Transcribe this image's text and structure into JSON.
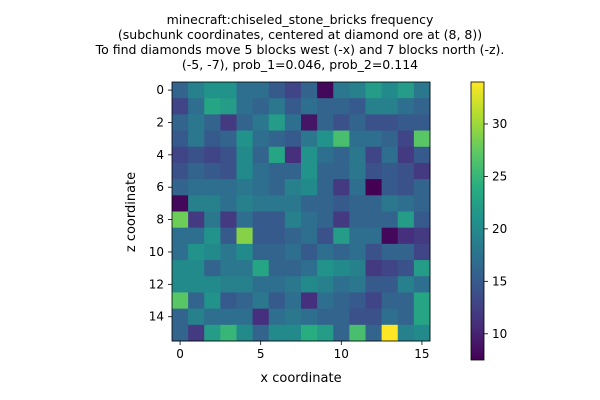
{
  "chart_data": {
    "type": "heatmap",
    "title_lines": [
      "minecraft:chiseled_stone_bricks frequency",
      "(subchunk coordinates, centered at diamond ore at (8, 8))",
      "To find diamonds move 5 blocks west (-x) and 7 blocks north (-z).",
      "(-5, -7), prob_1=0.046, prob_2=0.114"
    ],
    "xlabel": "x coordinate",
    "ylabel": "z coordinate",
    "x_ticks": [
      0,
      5,
      10,
      15
    ],
    "y_ticks": [
      0,
      2,
      4,
      6,
      8,
      10,
      12,
      14
    ],
    "colorbar_ticks": [
      10,
      15,
      20,
      25,
      30
    ],
    "vmin": 7.5,
    "vmax": 34,
    "colormap": "viridis",
    "values": [
      [
        16,
        19,
        21,
        21,
        17,
        17,
        15,
        13,
        16,
        8,
        18,
        19,
        22,
        20,
        22,
        18
      ],
      [
        13,
        17,
        23,
        22,
        17,
        16,
        18,
        15,
        17,
        16,
        16,
        15,
        19,
        19,
        17,
        16
      ],
      [
        16,
        18,
        16,
        12,
        16,
        18,
        22,
        17,
        9,
        16,
        14,
        16,
        14,
        14,
        15,
        15
      ],
      [
        15,
        18,
        15,
        16,
        21,
        17,
        16,
        15,
        18,
        21,
        26,
        17,
        17,
        16,
        13,
        27
      ],
      [
        13,
        14,
        13,
        14,
        20,
        16,
        23,
        11,
        21,
        17,
        16,
        18,
        13,
        17,
        12,
        15
      ],
      [
        14,
        16,
        15,
        14,
        20,
        17,
        16,
        16,
        21,
        16,
        16,
        18,
        14,
        15,
        14,
        12
      ],
      [
        16,
        17,
        17,
        17,
        18,
        17,
        16,
        19,
        20,
        16,
        12,
        17,
        7.5,
        15,
        14,
        16
      ],
      [
        8,
        19,
        19,
        17,
        19,
        18,
        18,
        18,
        16,
        16,
        15,
        16,
        16,
        18,
        17,
        16
      ],
      [
        28,
        12,
        18,
        12,
        17,
        15,
        15,
        19,
        17,
        16,
        12,
        16,
        16,
        16,
        22,
        15
      ],
      [
        17,
        17,
        21,
        15,
        29,
        15,
        15,
        16,
        17,
        14,
        22,
        17,
        17,
        8,
        11,
        12
      ],
      [
        17,
        21,
        20,
        18,
        20,
        16,
        16,
        17,
        15,
        17,
        16,
        17,
        14,
        16,
        16,
        13
      ],
      [
        20,
        20,
        16,
        18,
        18,
        23,
        16,
        16,
        17,
        21,
        20,
        19,
        12,
        13,
        14,
        22
      ],
      [
        20,
        20,
        20,
        19,
        19,
        17,
        17,
        18,
        20,
        19,
        17,
        18,
        15,
        15,
        19,
        17
      ],
      [
        27,
        16,
        21,
        15,
        16,
        18,
        15,
        17,
        11,
        17,
        16,
        15,
        13,
        16,
        16,
        23
      ],
      [
        16,
        19,
        17,
        17,
        17,
        11,
        17,
        18,
        17,
        16,
        16,
        14,
        14,
        17,
        16,
        23
      ],
      [
        16,
        12,
        22,
        25,
        20,
        16,
        20,
        20,
        24,
        22,
        16,
        26,
        16,
        34,
        19,
        20
      ]
    ]
  }
}
